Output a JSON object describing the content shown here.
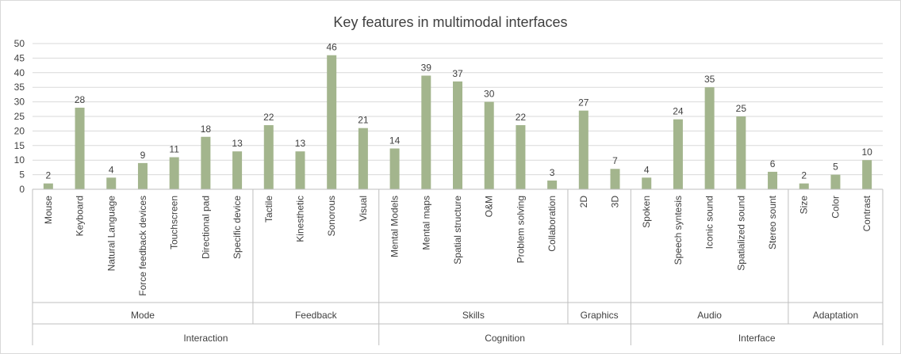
{
  "chart_data": {
    "type": "bar",
    "title": "Key features in multimodal interfaces",
    "bar_color": "#a3b58d",
    "grid": true,
    "ylim": [
      0,
      50
    ],
    "yticks": [
      0,
      5,
      10,
      15,
      20,
      25,
      30,
      35,
      40,
      45,
      50
    ],
    "categories": [
      "Mouse",
      "Keyboard",
      "Natural Language",
      "Force feedback devices",
      "Touchscreen",
      "Directional pad",
      "Specific device",
      "Tactile",
      "Kinesthetic",
      "Sonorous",
      "Visual",
      "Mental Models",
      "Mental maps",
      "Spatial structure",
      "O&M",
      "Problem solving",
      "Collaboration",
      "2D",
      "3D",
      "Spoken",
      "Speech syntesis",
      "Iconic sound",
      "Spatialized sound",
      "Stereo sount",
      "Size",
      "Color",
      "Contrast"
    ],
    "values": [
      2,
      28,
      4,
      9,
      11,
      18,
      13,
      22,
      13,
      46,
      21,
      14,
      39,
      37,
      30,
      22,
      3,
      27,
      7,
      4,
      24,
      35,
      25,
      6,
      2,
      5,
      10
    ],
    "groups_level1": [
      {
        "label": "Mode",
        "start": 0,
        "end": 6
      },
      {
        "label": "Feedback",
        "start": 7,
        "end": 10
      },
      {
        "label": "Skills",
        "start": 11,
        "end": 16
      },
      {
        "label": "Graphics",
        "start": 17,
        "end": 18
      },
      {
        "label": "Audio",
        "start": 19,
        "end": 23
      },
      {
        "label": "Adaptation",
        "start": 24,
        "end": 26
      }
    ],
    "groups_level2": [
      {
        "label": "Interaction",
        "start": 0,
        "end": 10
      },
      {
        "label": "Cognition",
        "start": 11,
        "end": 18
      },
      {
        "label": "Interface",
        "start": 19,
        "end": 26
      }
    ]
  }
}
